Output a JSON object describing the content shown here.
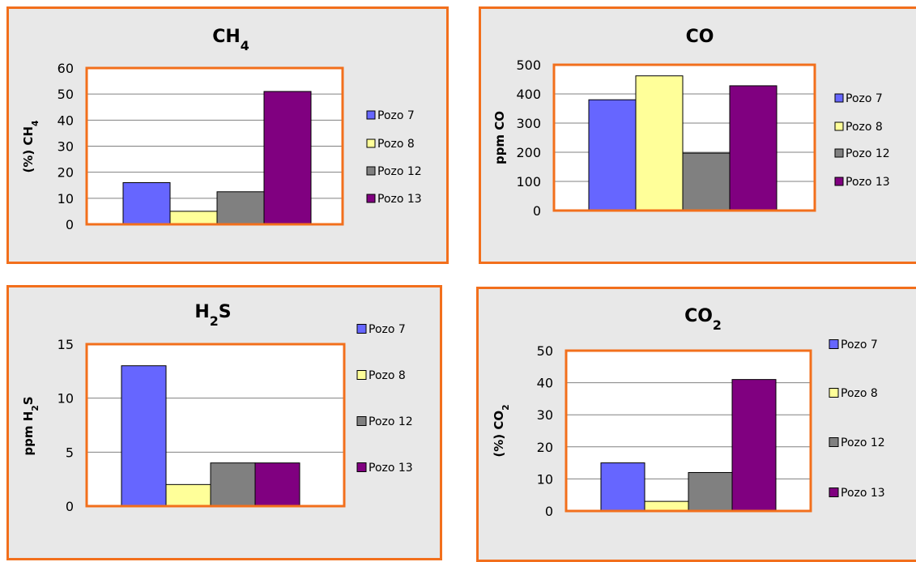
{
  "colors": {
    "panel_border": "#f26f1c",
    "panel_bg": "#e8e8e8",
    "plot_bg": "#ffffff",
    "series": [
      "#6666ff",
      "#ffff99",
      "#808080",
      "#800080"
    ]
  },
  "chart_data": [
    {
      "type": "bar",
      "title": "CH",
      "title_sub": "4",
      "ylabel": "(%) CH",
      "ylabel_sub": "4",
      "categories": [
        ""
      ],
      "series": [
        {
          "name": "Pozo 7",
          "values": [
            16
          ]
        },
        {
          "name": "Pozo 8",
          "values": [
            5
          ]
        },
        {
          "name": "Pozo 12",
          "values": [
            12.5
          ]
        },
        {
          "name": "Pozo 13",
          "values": [
            51
          ]
        }
      ],
      "ylim": [
        0,
        60
      ],
      "yticks": [
        "0",
        "10",
        "20",
        "30",
        "40",
        "50",
        "60"
      ],
      "grid": true,
      "legend": "right"
    },
    {
      "type": "bar",
      "title": "CO",
      "title_sub": "",
      "ylabel": "ppm CO",
      "ylabel_sub": "",
      "categories": [
        ""
      ],
      "series": [
        {
          "name": "Pozo 7",
          "values": [
            380
          ]
        },
        {
          "name": "Pozo 8",
          "values": [
            462
          ]
        },
        {
          "name": "Pozo 12",
          "values": [
            197
          ]
        },
        {
          "name": "Pozo 13",
          "values": [
            428
          ]
        }
      ],
      "ylim": [
        0,
        500
      ],
      "yticks": [
        "0",
        "100",
        "200",
        "300",
        "400",
        "500"
      ],
      "grid": true,
      "legend": "right"
    },
    {
      "type": "bar",
      "title": "H",
      "title_sub": "2",
      "title_tail": "S",
      "ylabel": "ppm H",
      "ylabel_sub": "2",
      "ylabel_tail": "S",
      "categories": [
        ""
      ],
      "series": [
        {
          "name": "Pozo 7",
          "values": [
            13
          ]
        },
        {
          "name": "Pozo 8",
          "values": [
            2
          ]
        },
        {
          "name": "Pozo 12",
          "values": [
            4
          ]
        },
        {
          "name": "Pozo 13",
          "values": [
            4
          ]
        }
      ],
      "ylim": [
        0,
        15
      ],
      "yticks": [
        "0",
        "5",
        "10",
        "15"
      ],
      "grid": true,
      "legend": "right"
    },
    {
      "type": "bar",
      "title": "CO",
      "title_sub": "2",
      "ylabel": "(%) CO",
      "ylabel_sub": "2",
      "categories": [
        ""
      ],
      "series": [
        {
          "name": "Pozo 7",
          "values": [
            15
          ]
        },
        {
          "name": "Pozo 8",
          "values": [
            3
          ]
        },
        {
          "name": "Pozo 12",
          "values": [
            12
          ]
        },
        {
          "name": "Pozo 13",
          "values": [
            41
          ]
        }
      ],
      "ylim": [
        0,
        50
      ],
      "yticks": [
        "0",
        "10",
        "20",
        "30",
        "40",
        "50"
      ],
      "grid": true,
      "legend": "right"
    }
  ]
}
